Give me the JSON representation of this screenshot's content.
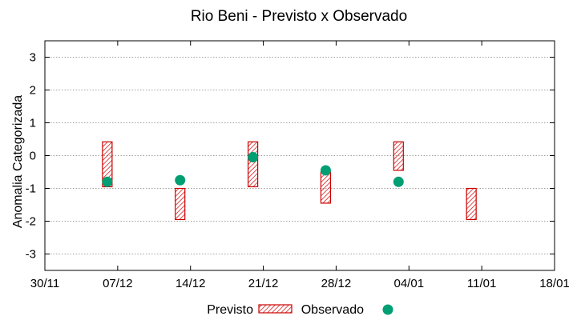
{
  "chart_data": {
    "type": "range-and-scatter",
    "title": "Rio Beni - Previsto x Observado",
    "xlabel": "",
    "ylabel": "Anomalia Categorizada",
    "ylim": [
      -3.5,
      3.5
    ],
    "yticks": [
      3,
      2,
      1,
      0,
      -1,
      -2,
      -3
    ],
    "ytick_labels": [
      "3",
      "2",
      "1",
      "0",
      "-1",
      "-2",
      "-3"
    ],
    "xlim": [
      "2019-11-30",
      "2020-01-18"
    ],
    "xticks": [
      "2019-11-30",
      "2019-12-07",
      "2019-12-14",
      "2019-12-21",
      "2019-12-28",
      "2020-01-04",
      "2020-01-11",
      "2020-01-18"
    ],
    "xtick_labels": [
      "30/11",
      "07/12",
      "14/12",
      "21/12",
      "28/12",
      "04/01",
      "11/01",
      "18/01"
    ],
    "grid": true,
    "legend": "bottom-center",
    "series": [
      {
        "name": "Previsto",
        "kind": "range-box",
        "color": "#cc0000",
        "points": [
          {
            "x": "2019-12-06",
            "low": -0.95,
            "high": 0.42
          },
          {
            "x": "2019-12-13",
            "low": -1.95,
            "high": -1.0
          },
          {
            "x": "2019-12-20",
            "low": -0.95,
            "high": 0.42
          },
          {
            "x": "2019-12-27",
            "low": -1.45,
            "high": -0.5
          },
          {
            "x": "2020-01-03",
            "low": -0.45,
            "high": 0.42
          },
          {
            "x": "2020-01-10",
            "low": -1.95,
            "high": -1.0
          }
        ]
      },
      {
        "name": "Observado",
        "kind": "point",
        "color": "#009e73",
        "points": [
          {
            "x": "2019-12-06",
            "y": -0.8
          },
          {
            "x": "2019-12-13",
            "y": -0.75
          },
          {
            "x": "2019-12-20",
            "y": -0.05
          },
          {
            "x": "2019-12-27",
            "y": -0.45
          },
          {
            "x": "2020-01-03",
            "y": -0.8
          }
        ]
      }
    ]
  }
}
